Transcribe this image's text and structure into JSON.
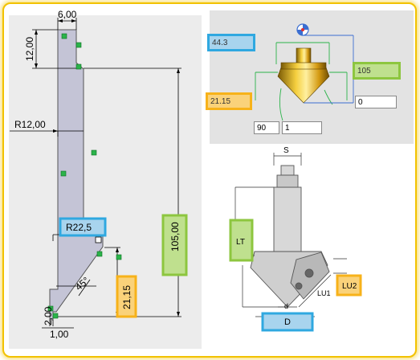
{
  "sketch": {
    "dim_top_width": "6,00",
    "dim_top_height": "12,00",
    "dim_radius": "R12,00",
    "dim_inner_radius": "R22,5",
    "dim_total_length": "105,00",
    "dim_lower_length": "21,15",
    "dim_angle": "45°",
    "dim_tip_height": "2,00",
    "dim_tip_width": "1,00"
  },
  "preview3d": {
    "field_diameter": "44.3",
    "field_total_length": "105",
    "field_cut_length": "21.15",
    "field_offset": "0",
    "field_angle": "90",
    "field_flutes": "1"
  },
  "schematic": {
    "label_s": "S",
    "label_lt": "LT",
    "label_lu1": "LU1",
    "label_lu2": "LU2",
    "label_d_small": "d",
    "label_d": "D"
  },
  "colors": {
    "highlight_blue": "#2fa8e0",
    "highlight_green": "#8dc63f",
    "highlight_orange": "#f7b21a",
    "frame_yellow": "#f2c200"
  }
}
